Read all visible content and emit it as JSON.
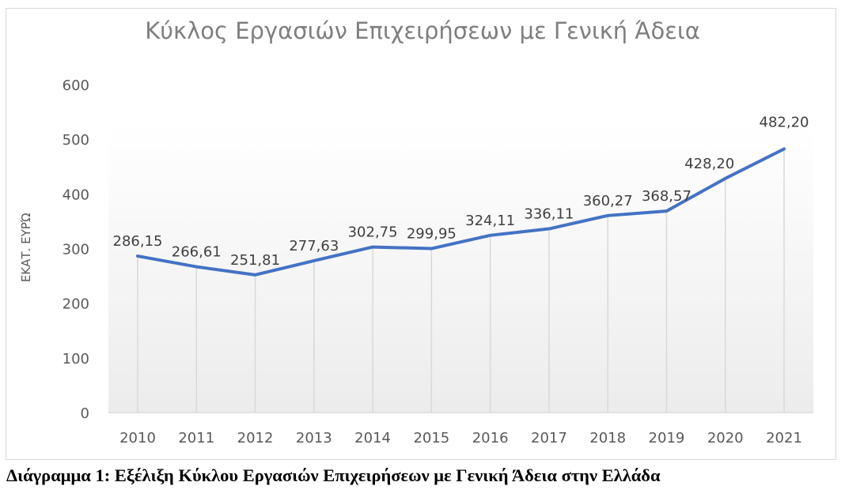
{
  "chart_data": {
    "type": "line",
    "title": "Κύκλος Εργασιών Επιχειρήσεων με Γενική Άδεια",
    "xlabel": "",
    "ylabel": "ΕΚΑΤ. ΕΥΡΏ",
    "categories": [
      "2010",
      "2011",
      "2012",
      "2013",
      "2014",
      "2015",
      "2016",
      "2017",
      "2018",
      "2019",
      "2020",
      "2021"
    ],
    "series": [
      {
        "name": "Κύκλος Εργασιών",
        "values": [
          286.15,
          266.61,
          251.81,
          277.63,
          302.75,
          299.95,
          324.11,
          336.11,
          360.27,
          368.57,
          428.2,
          482.2
        ],
        "labels": [
          "286,15",
          "266,61",
          "251,81",
          "277,63",
          "302,75",
          "299,95",
          "324,11",
          "336,11",
          "360,27",
          "368,57",
          "428,20",
          "482,20"
        ],
        "color": "#4472C4"
      }
    ],
    "y_ticks": [
      "0",
      "100",
      "200",
      "300",
      "400",
      "500",
      "600"
    ],
    "ylim": [
      0,
      600
    ],
    "grid": "vertical category lines",
    "legend": "none"
  },
  "caption": "Διάγραμμα 1: Εξέλιξη Κύκλου Εργασιών Επιχειρήσεων με Γενική Άδεια στην Ελλάδα"
}
